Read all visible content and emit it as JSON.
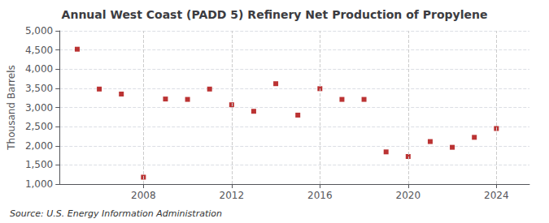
{
  "chart_data": {
    "type": "scatter",
    "title": "Annual West Coast (PADD 5) Refinery Net Production of Propylene",
    "ylabel": "Thousand Barrels",
    "annotation": "Source: U.S. Energy Information Administration",
    "x": [
      2005,
      2006,
      2007,
      2008,
      2009,
      2010,
      2011,
      2012,
      2013,
      2014,
      2015,
      2016,
      2017,
      2018,
      2019,
      2020,
      2021,
      2022,
      2023,
      2024
    ],
    "values": [
      4520,
      3480,
      3350,
      1180,
      3220,
      3210,
      3480,
      3070,
      2900,
      3620,
      2800,
      3490,
      3210,
      3210,
      1840,
      1720,
      2110,
      1960,
      2220,
      2450
    ],
    "color": "#aa0000",
    "marker": "square",
    "xlim": [
      2004.2,
      2025.5
    ],
    "xticks": [
      2008,
      2012,
      2016,
      2020,
      2024
    ],
    "ylim": [
      1000,
      5000
    ],
    "yticks": [
      {
        "value": 1000,
        "label": "1,000"
      },
      {
        "value": 1500,
        "label": "1,500"
      },
      {
        "value": 2000,
        "label": "2,000"
      },
      {
        "value": 2500,
        "label": "2,500"
      },
      {
        "value": 3000,
        "label": "3,000"
      },
      {
        "value": 3500,
        "label": "3,500"
      },
      {
        "value": 4000,
        "label": "4,000"
      },
      {
        "value": 4500,
        "label": "4,500"
      },
      {
        "value": 5000,
        "label": "5,000"
      }
    ],
    "grid": true
  }
}
